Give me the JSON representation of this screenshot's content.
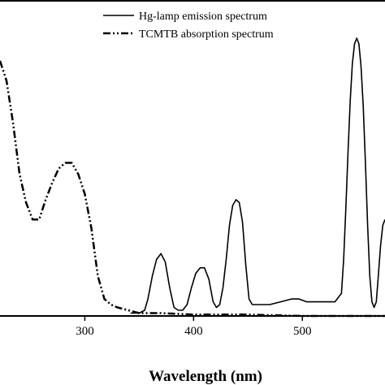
{
  "chart_data": {
    "type": "line",
    "title": "",
    "xlabel": "Wavelength (nm)",
    "ylabel": "",
    "xlim": [
      222,
      576
    ],
    "ylim": [
      0,
      1.0
    ],
    "xticks": [
      300,
      400,
      500
    ],
    "xtick_labels": [
      "300",
      "400",
      "500"
    ],
    "grid": false,
    "legend_position": "top-right",
    "series": [
      {
        "name": "Hg-lamp emission spectrum",
        "style": "solid",
        "color": "#000000",
        "x": [
          342,
          350,
          355,
          358,
          362,
          366,
          370,
          374,
          378,
          382,
          386,
          390,
          394,
          398,
          402,
          406,
          410,
          414,
          418,
          421,
          424,
          427,
          430,
          433,
          436,
          439,
          442,
          445,
          448,
          451,
          454,
          460,
          470,
          480,
          490,
          497,
          504,
          510,
          520,
          530,
          536,
          538,
          540,
          542,
          544,
          546,
          548,
          550,
          552,
          554,
          556,
          558,
          560,
          562,
          564,
          566,
          568,
          570,
          572,
          574,
          576
        ],
        "y": [
          0.01,
          0.01,
          0.02,
          0.06,
          0.14,
          0.2,
          0.22,
          0.19,
          0.1,
          0.03,
          0.02,
          0.02,
          0.04,
          0.1,
          0.15,
          0.17,
          0.17,
          0.13,
          0.05,
          0.03,
          0.04,
          0.1,
          0.2,
          0.32,
          0.39,
          0.41,
          0.4,
          0.33,
          0.18,
          0.06,
          0.04,
          0.04,
          0.04,
          0.05,
          0.06,
          0.06,
          0.05,
          0.05,
          0.05,
          0.05,
          0.08,
          0.2,
          0.38,
          0.58,
          0.76,
          0.89,
          0.96,
          0.98,
          0.96,
          0.88,
          0.74,
          0.54,
          0.32,
          0.14,
          0.05,
          0.03,
          0.05,
          0.15,
          0.25,
          0.32,
          0.34
        ]
      },
      {
        "name": "TCMTB absorption spectrum",
        "style": "dash-dot-dot",
        "color": "#000000",
        "x": [
          222,
          228,
          234,
          240,
          246,
          252,
          258,
          264,
          270,
          276,
          282,
          288,
          294,
          300,
          306,
          312,
          318,
          324,
          330,
          340,
          350,
          370,
          400,
          450,
          500,
          550,
          576
        ],
        "y": [
          0.9,
          0.83,
          0.68,
          0.5,
          0.4,
          0.34,
          0.34,
          0.41,
          0.47,
          0.52,
          0.54,
          0.54,
          0.5,
          0.43,
          0.31,
          0.14,
          0.06,
          0.04,
          0.03,
          0.02,
          0.01,
          0.01,
          0.005,
          0.005,
          0.0,
          0.0,
          0.0
        ]
      }
    ]
  }
}
